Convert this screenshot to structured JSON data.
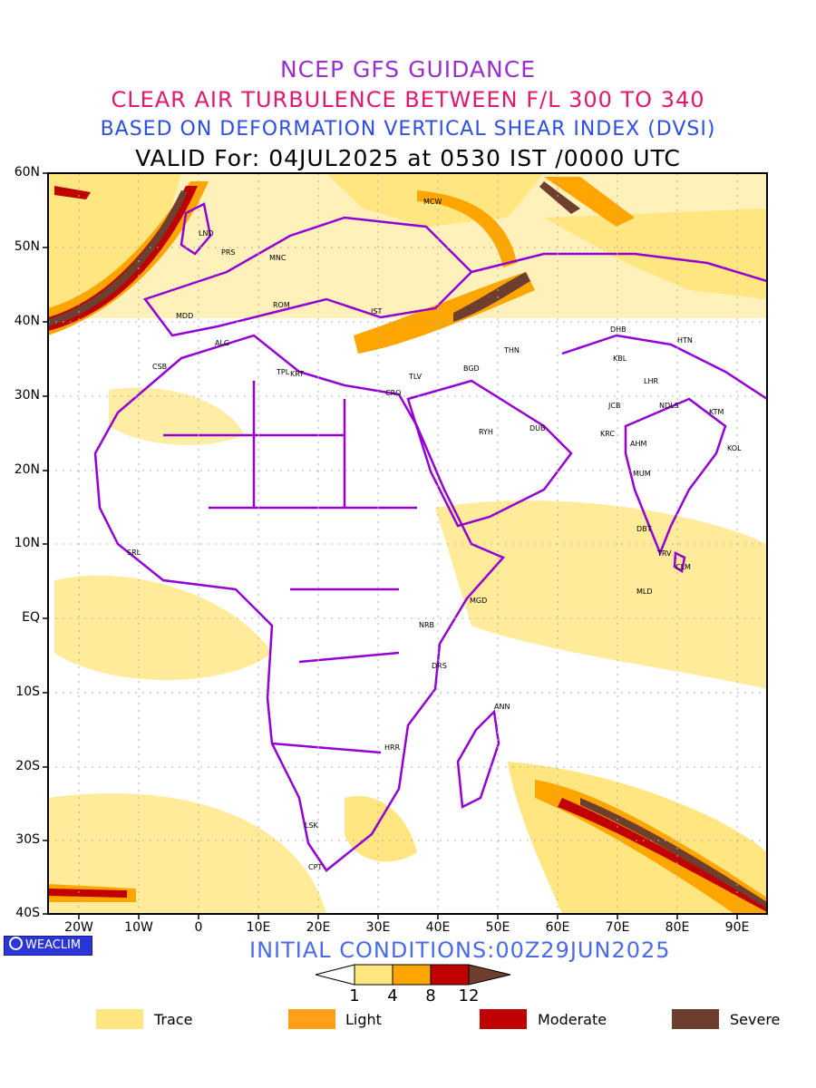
{
  "titles": {
    "line1": "NCEP GFS GUIDANCE",
    "line2": "CLEAR AIR TURBULENCE BETWEEN F/L 300 TO 340",
    "line3": "BASED ON DEFORMATION VERTICAL SHEAR INDEX (DVSI)",
    "line4": "VALID For: 04JUL2025 at 0530 IST /0000 UTC"
  },
  "axes": {
    "lat_labels": [
      "60N",
      "50N",
      "40N",
      "30N",
      "20N",
      "10N",
      "EQ",
      "10S",
      "20S",
      "30S",
      "40S"
    ],
    "lon_labels": [
      "20W",
      "10W",
      "0",
      "10E",
      "20E",
      "30E",
      "40E",
      "50E",
      "60E",
      "70E",
      "80E",
      "90E"
    ]
  },
  "stations": [
    {
      "code": "MCW"
    },
    {
      "code": "LND"
    },
    {
      "code": "PRS"
    },
    {
      "code": "MNC"
    },
    {
      "code": "ROM"
    },
    {
      "code": "IST"
    },
    {
      "code": "MDD"
    },
    {
      "code": "ALG"
    },
    {
      "code": "CSB"
    },
    {
      "code": "TPL"
    },
    {
      "code": "KRT"
    },
    {
      "code": "TLV"
    },
    {
      "code": "CRO"
    },
    {
      "code": "BGD"
    },
    {
      "code": "THN"
    },
    {
      "code": "RYH"
    },
    {
      "code": "DUB"
    },
    {
      "code": "DHB"
    },
    {
      "code": "KBL"
    },
    {
      "code": "HTN"
    },
    {
      "code": "LHR"
    },
    {
      "code": "NDLS"
    },
    {
      "code": "JCB"
    },
    {
      "code": "KTM"
    },
    {
      "code": "KRC"
    },
    {
      "code": "AHM"
    },
    {
      "code": "KOL"
    },
    {
      "code": "MUM"
    },
    {
      "code": "DBT"
    },
    {
      "code": "TRV"
    },
    {
      "code": "CLM"
    },
    {
      "code": "MLD"
    },
    {
      "code": "SRL"
    },
    {
      "code": "MGD"
    },
    {
      "code": "NRB"
    },
    {
      "code": "DRS"
    },
    {
      "code": "ANN"
    },
    {
      "code": "HRR"
    },
    {
      "code": "LSK"
    },
    {
      "code": "CPT"
    }
  ],
  "badge": "WEACLIM",
  "initial_conditions": "INITIAL CONDITIONS:00Z29JUN2025",
  "scale": {
    "values": [
      "1",
      "4",
      "8",
      "12"
    ],
    "colors": [
      "#ffe680",
      "#ffa500",
      "#c00000",
      "#6e3e2e"
    ]
  },
  "legend": [
    {
      "label": "Trace",
      "color": "#ffe680"
    },
    {
      "label": "Light",
      "color": "#ff9f1a"
    },
    {
      "label": "Moderate",
      "color": "#c00000"
    },
    {
      "label": "Severe",
      "color": "#6e3e2e"
    }
  ],
  "colors": {
    "boundaries": "#9400d3",
    "trace": "#ffe680",
    "light": "#ffa500",
    "moderate": "#c00000",
    "severe": "#6e3e2e"
  }
}
